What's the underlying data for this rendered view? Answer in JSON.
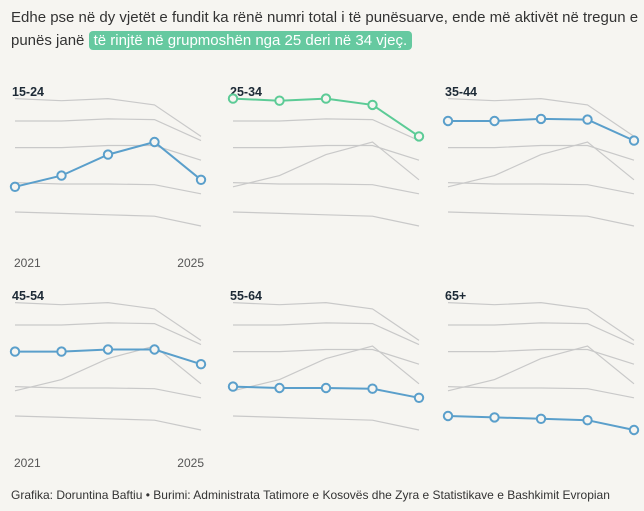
{
  "title": {
    "text_before": "Edhe pse në dy vjetët e fundit ka rënë numri total i të punësuarve, ende më aktivët në tregun e punës janë ",
    "highlight": "të rinjtë në grupmoshën nga 25 deri në 34 vjeç."
  },
  "colors": {
    "blue": "#5a9fcb",
    "green": "#5ccb96",
    "context": "#c9c9c9",
    "highlight_bg": "#66c9a0"
  },
  "footer": "Grafika: Doruntina Baftiu • Burimi: Administrata Tatimore e Kosovës dhe Zyra e Statistikave e Bashkimit Evropian",
  "chart_data": {
    "type": "line",
    "layout": "small-multiples",
    "x": [
      2021,
      2022,
      2023,
      2024,
      2025
    ],
    "x_tick_labels": [
      "2021",
      "2025"
    ],
    "ylim": [
      0,
      100
    ],
    "series": [
      {
        "name": "15-24",
        "values": [
          38,
          46,
          61,
          70,
          43
        ],
        "color": "#5a9fcb"
      },
      {
        "name": "25-34",
        "values": [
          101,
          99.5,
          101,
          96.5,
          74
        ],
        "color": "#5ccb96"
      },
      {
        "name": "35-44",
        "values": [
          85,
          85,
          86.5,
          86,
          71
        ],
        "color": "#5a9fcb"
      },
      {
        "name": "45-54",
        "values": [
          66,
          66,
          67.5,
          67.5,
          57
        ],
        "color": "#5a9fcb"
      },
      {
        "name": "55-64",
        "values": [
          41,
          40,
          40,
          39.5,
          33
        ],
        "color": "#5a9fcb"
      },
      {
        "name": "65+",
        "values": [
          20,
          19,
          18,
          17,
          10
        ],
        "color": "#5a9fcb"
      }
    ]
  }
}
